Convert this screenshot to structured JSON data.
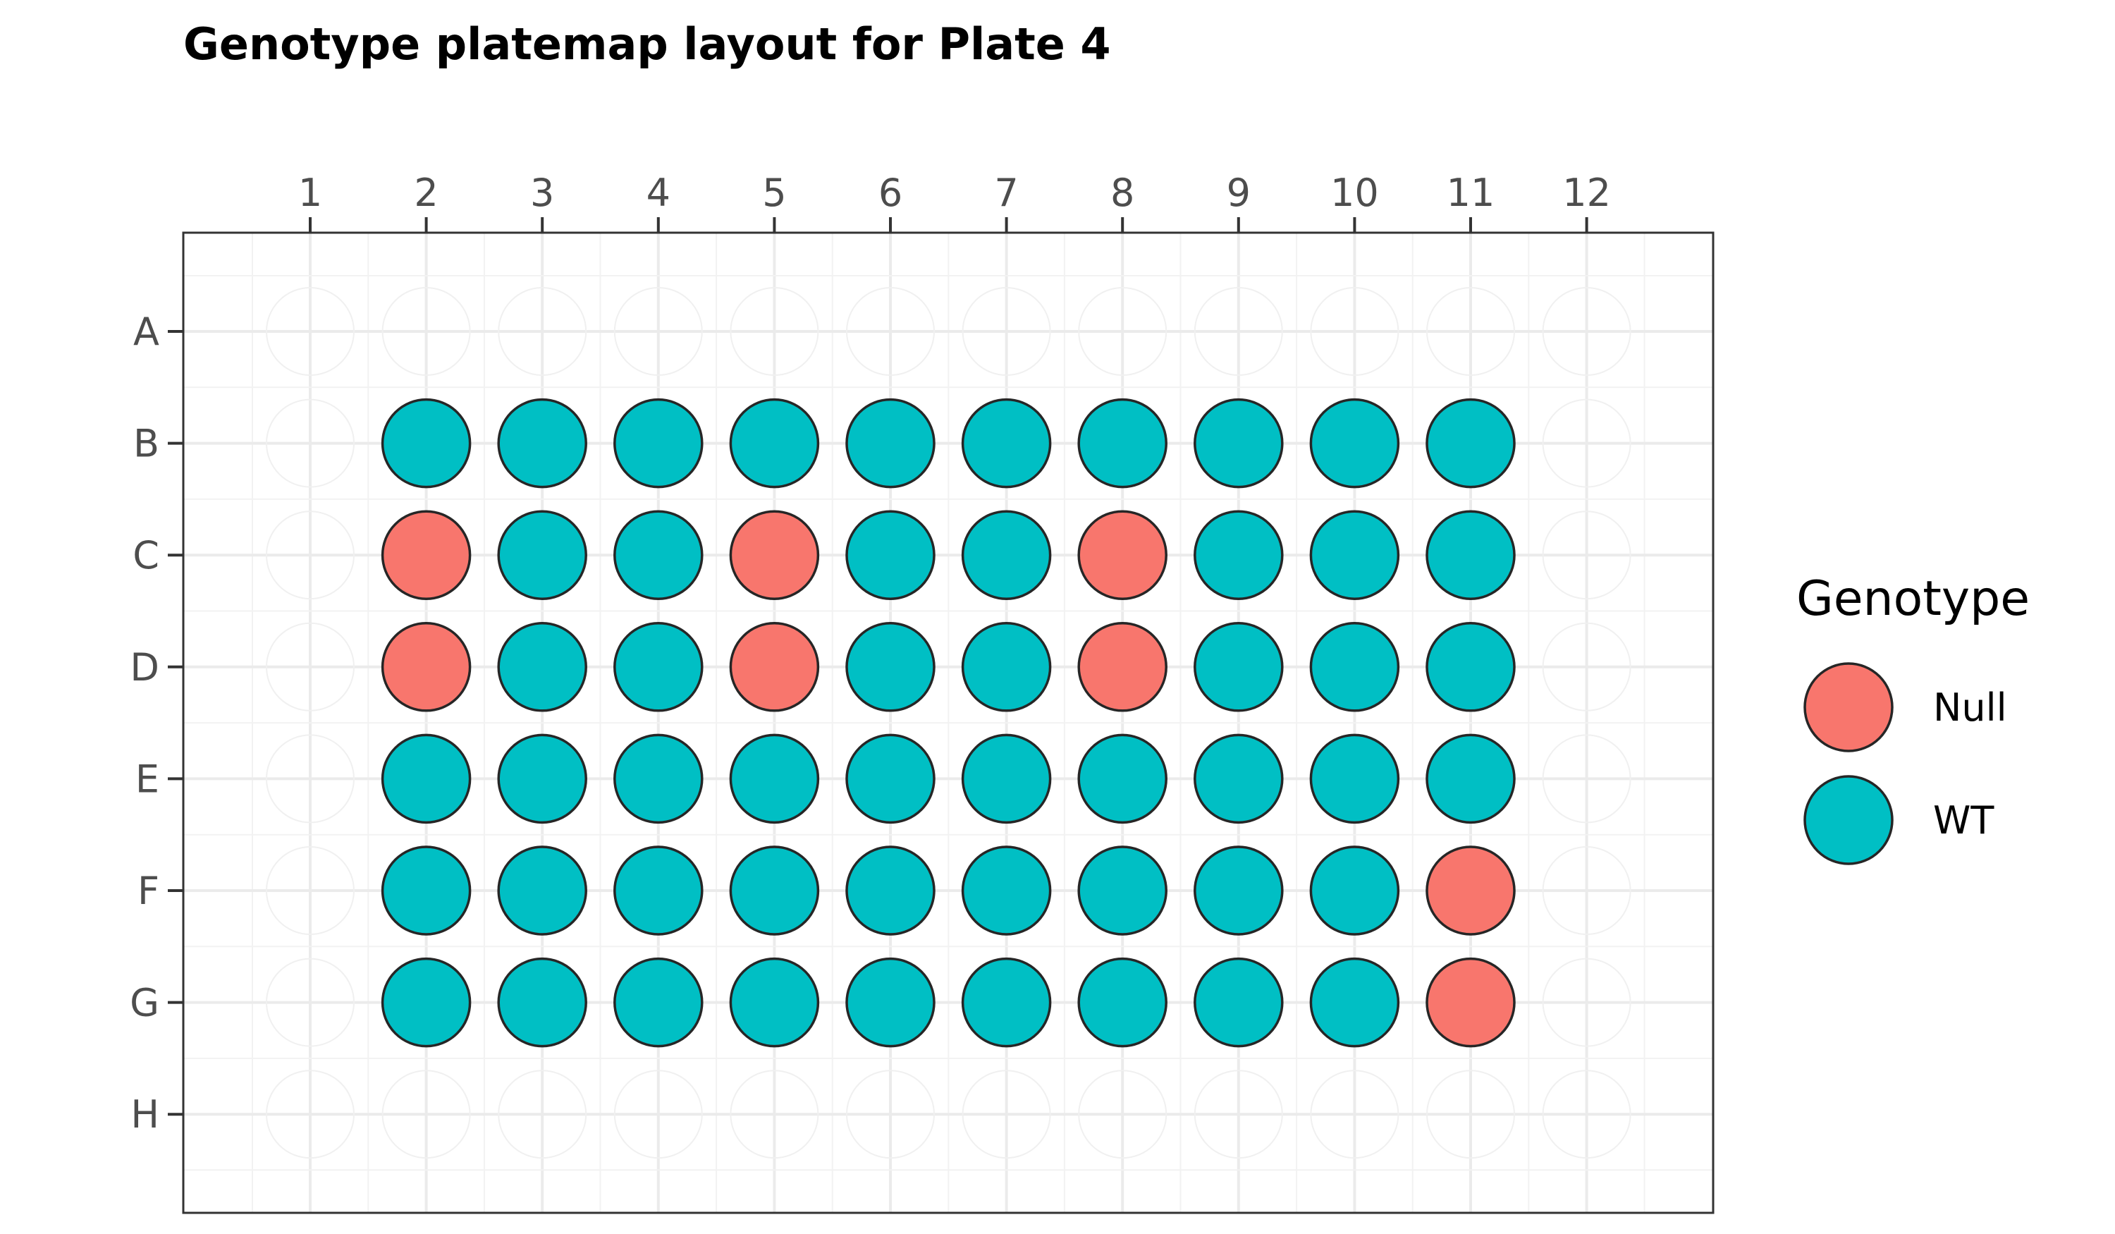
{
  "chart_data": {
    "type": "scatter",
    "title": "Genotype platemap layout for Plate 4",
    "columns": [
      "1",
      "2",
      "3",
      "4",
      "5",
      "6",
      "7",
      "8",
      "9",
      "10",
      "11",
      "12"
    ],
    "rows": [
      "A",
      "B",
      "C",
      "D",
      "E",
      "F",
      "G",
      "H"
    ],
    "legend": {
      "title": "Genotype",
      "placement": "right",
      "entries": [
        {
          "name": "Null",
          "color": "#F8766D"
        },
        {
          "name": "WT",
          "color": "#00BFC4"
        }
      ]
    },
    "wells": [
      {
        "row": "B",
        "values": [
          "WT",
          "WT",
          "WT",
          "WT",
          "WT",
          "WT",
          "WT",
          "WT",
          "WT",
          "WT"
        ],
        "columns": [
          2,
          3,
          4,
          5,
          6,
          7,
          8,
          9,
          10,
          11
        ]
      },
      {
        "row": "C",
        "values": [
          "Null",
          "WT",
          "WT",
          "Null",
          "WT",
          "WT",
          "Null",
          "WT",
          "WT",
          "WT"
        ],
        "columns": [
          2,
          3,
          4,
          5,
          6,
          7,
          8,
          9,
          10,
          11
        ]
      },
      {
        "row": "D",
        "values": [
          "Null",
          "WT",
          "WT",
          "Null",
          "WT",
          "WT",
          "Null",
          "WT",
          "WT",
          "WT"
        ],
        "columns": [
          2,
          3,
          4,
          5,
          6,
          7,
          8,
          9,
          10,
          11
        ]
      },
      {
        "row": "E",
        "values": [
          "WT",
          "WT",
          "WT",
          "WT",
          "WT",
          "WT",
          "WT",
          "WT",
          "WT",
          "WT"
        ],
        "columns": [
          2,
          3,
          4,
          5,
          6,
          7,
          8,
          9,
          10,
          11
        ]
      },
      {
        "row": "F",
        "values": [
          "WT",
          "WT",
          "WT",
          "WT",
          "WT",
          "WT",
          "WT",
          "WT",
          "WT",
          "Null"
        ],
        "columns": [
          2,
          3,
          4,
          5,
          6,
          7,
          8,
          9,
          10,
          11
        ]
      },
      {
        "row": "G",
        "values": [
          "WT",
          "WT",
          "WT",
          "WT",
          "WT",
          "WT",
          "WT",
          "WT",
          "WT",
          "Null"
        ],
        "columns": [
          2,
          3,
          4,
          5,
          6,
          7,
          8,
          9,
          10,
          11
        ]
      }
    ],
    "grid": true
  }
}
